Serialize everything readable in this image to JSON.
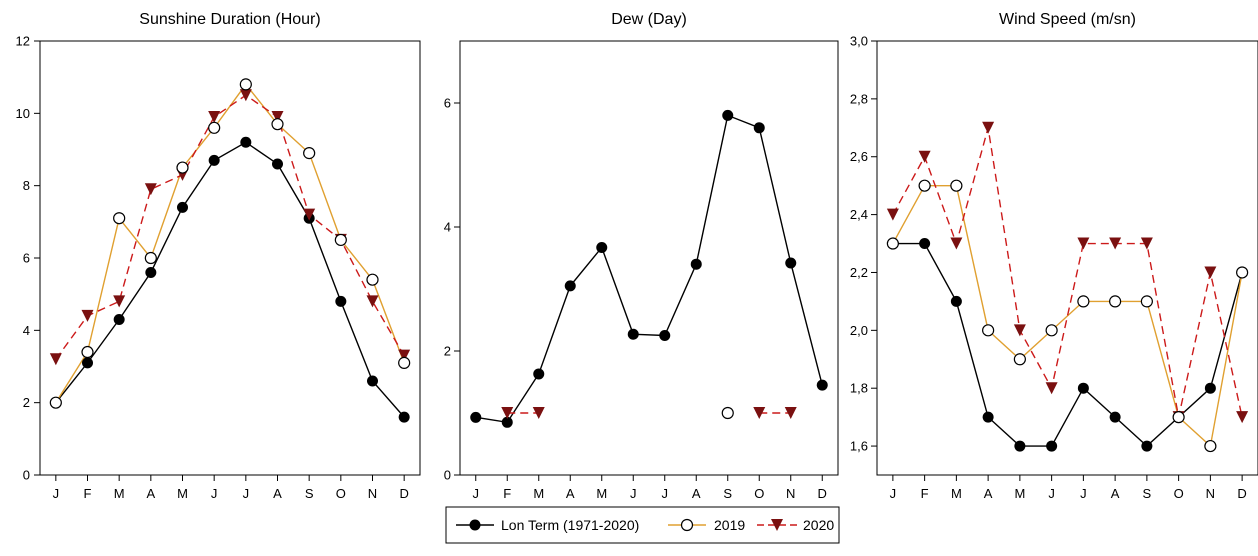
{
  "colors": {
    "long_term": "#000000",
    "y2019": "#e0a030",
    "y2020": "#cc1a1a",
    "marker2020": "#7a1010"
  },
  "legend": {
    "long_term": "Lon Term (1971-2020)",
    "y2019": "2019",
    "y2020": "2020"
  },
  "chart_data": [
    {
      "type": "line",
      "title": "Sunshine Duration (Hour)",
      "categories": [
        "J",
        "F",
        "M",
        "A",
        "M",
        "J",
        "J",
        "A",
        "S",
        "O",
        "N",
        "D"
      ],
      "ylim": [
        0,
        12
      ],
      "yticks": [
        "0",
        "2",
        "4",
        "6",
        "8",
        "10",
        "12"
      ],
      "series": [
        {
          "name": "Lon Term (1971-2020)",
          "values": [
            2.0,
            3.1,
            4.3,
            5.6,
            7.4,
            8.7,
            9.2,
            8.6,
            7.1,
            4.8,
            2.6,
            1.6
          ]
        },
        {
          "name": "2019",
          "values": [
            2.0,
            3.4,
            7.1,
            6.0,
            8.5,
            9.6,
            10.8,
            9.7,
            8.9,
            6.5,
            5.4,
            3.1
          ]
        },
        {
          "name": "2020",
          "values": [
            3.2,
            4.4,
            4.8,
            7.9,
            8.3,
            9.9,
            10.5,
            9.9,
            7.2,
            6.5,
            4.8,
            3.3
          ]
        }
      ]
    },
    {
      "type": "line",
      "title": "Dew (Day)",
      "categories": [
        "J",
        "F",
        "M",
        "A",
        "M",
        "J",
        "J",
        "A",
        "S",
        "O",
        "N",
        "D"
      ],
      "ylim": [
        0,
        7
      ],
      "yticks": [
        "0",
        "2",
        "4",
        "6"
      ],
      "series": [
        {
          "name": "Lon Term (1971-2020)",
          "values": [
            0.93,
            0.85,
            1.63,
            3.05,
            3.67,
            2.27,
            2.25,
            3.4,
            5.8,
            5.6,
            3.42,
            1.45
          ]
        },
        {
          "name": "2019",
          "values": [
            null,
            null,
            null,
            null,
            null,
            null,
            null,
            null,
            1.0,
            null,
            null,
            null
          ]
        },
        {
          "name": "2020",
          "values": [
            null,
            1.0,
            1.0,
            null,
            null,
            null,
            null,
            null,
            null,
            1.0,
            1.0,
            null
          ]
        }
      ]
    },
    {
      "type": "line",
      "title": "Wind Speed (m/sn)",
      "categories": [
        "J",
        "F",
        "M",
        "A",
        "M",
        "J",
        "J",
        "A",
        "S",
        "O",
        "N",
        "D"
      ],
      "ylim": [
        1.5,
        3.0
      ],
      "yticks": [
        "1,6",
        "1,8",
        "2,0",
        "2,2",
        "2,4",
        "2,6",
        "2,8",
        "3,0"
      ],
      "ytick_values": [
        1.6,
        1.8,
        2.0,
        2.2,
        2.4,
        2.6,
        2.8,
        3.0
      ],
      "series": [
        {
          "name": "Lon Term (1971-2020)",
          "values": [
            2.3,
            2.3,
            2.1,
            1.7,
            1.6,
            1.6,
            1.8,
            1.7,
            1.6,
            1.7,
            1.8,
            2.2
          ]
        },
        {
          "name": "2019",
          "values": [
            2.3,
            2.5,
            2.5,
            2.0,
            1.9,
            2.0,
            2.1,
            2.1,
            2.1,
            1.7,
            1.6,
            2.2
          ]
        },
        {
          "name": "2020",
          "values": [
            2.4,
            2.6,
            2.3,
            2.7,
            2.0,
            1.8,
            2.3,
            2.3,
            2.3,
            1.7,
            2.2,
            1.7
          ]
        }
      ]
    }
  ]
}
